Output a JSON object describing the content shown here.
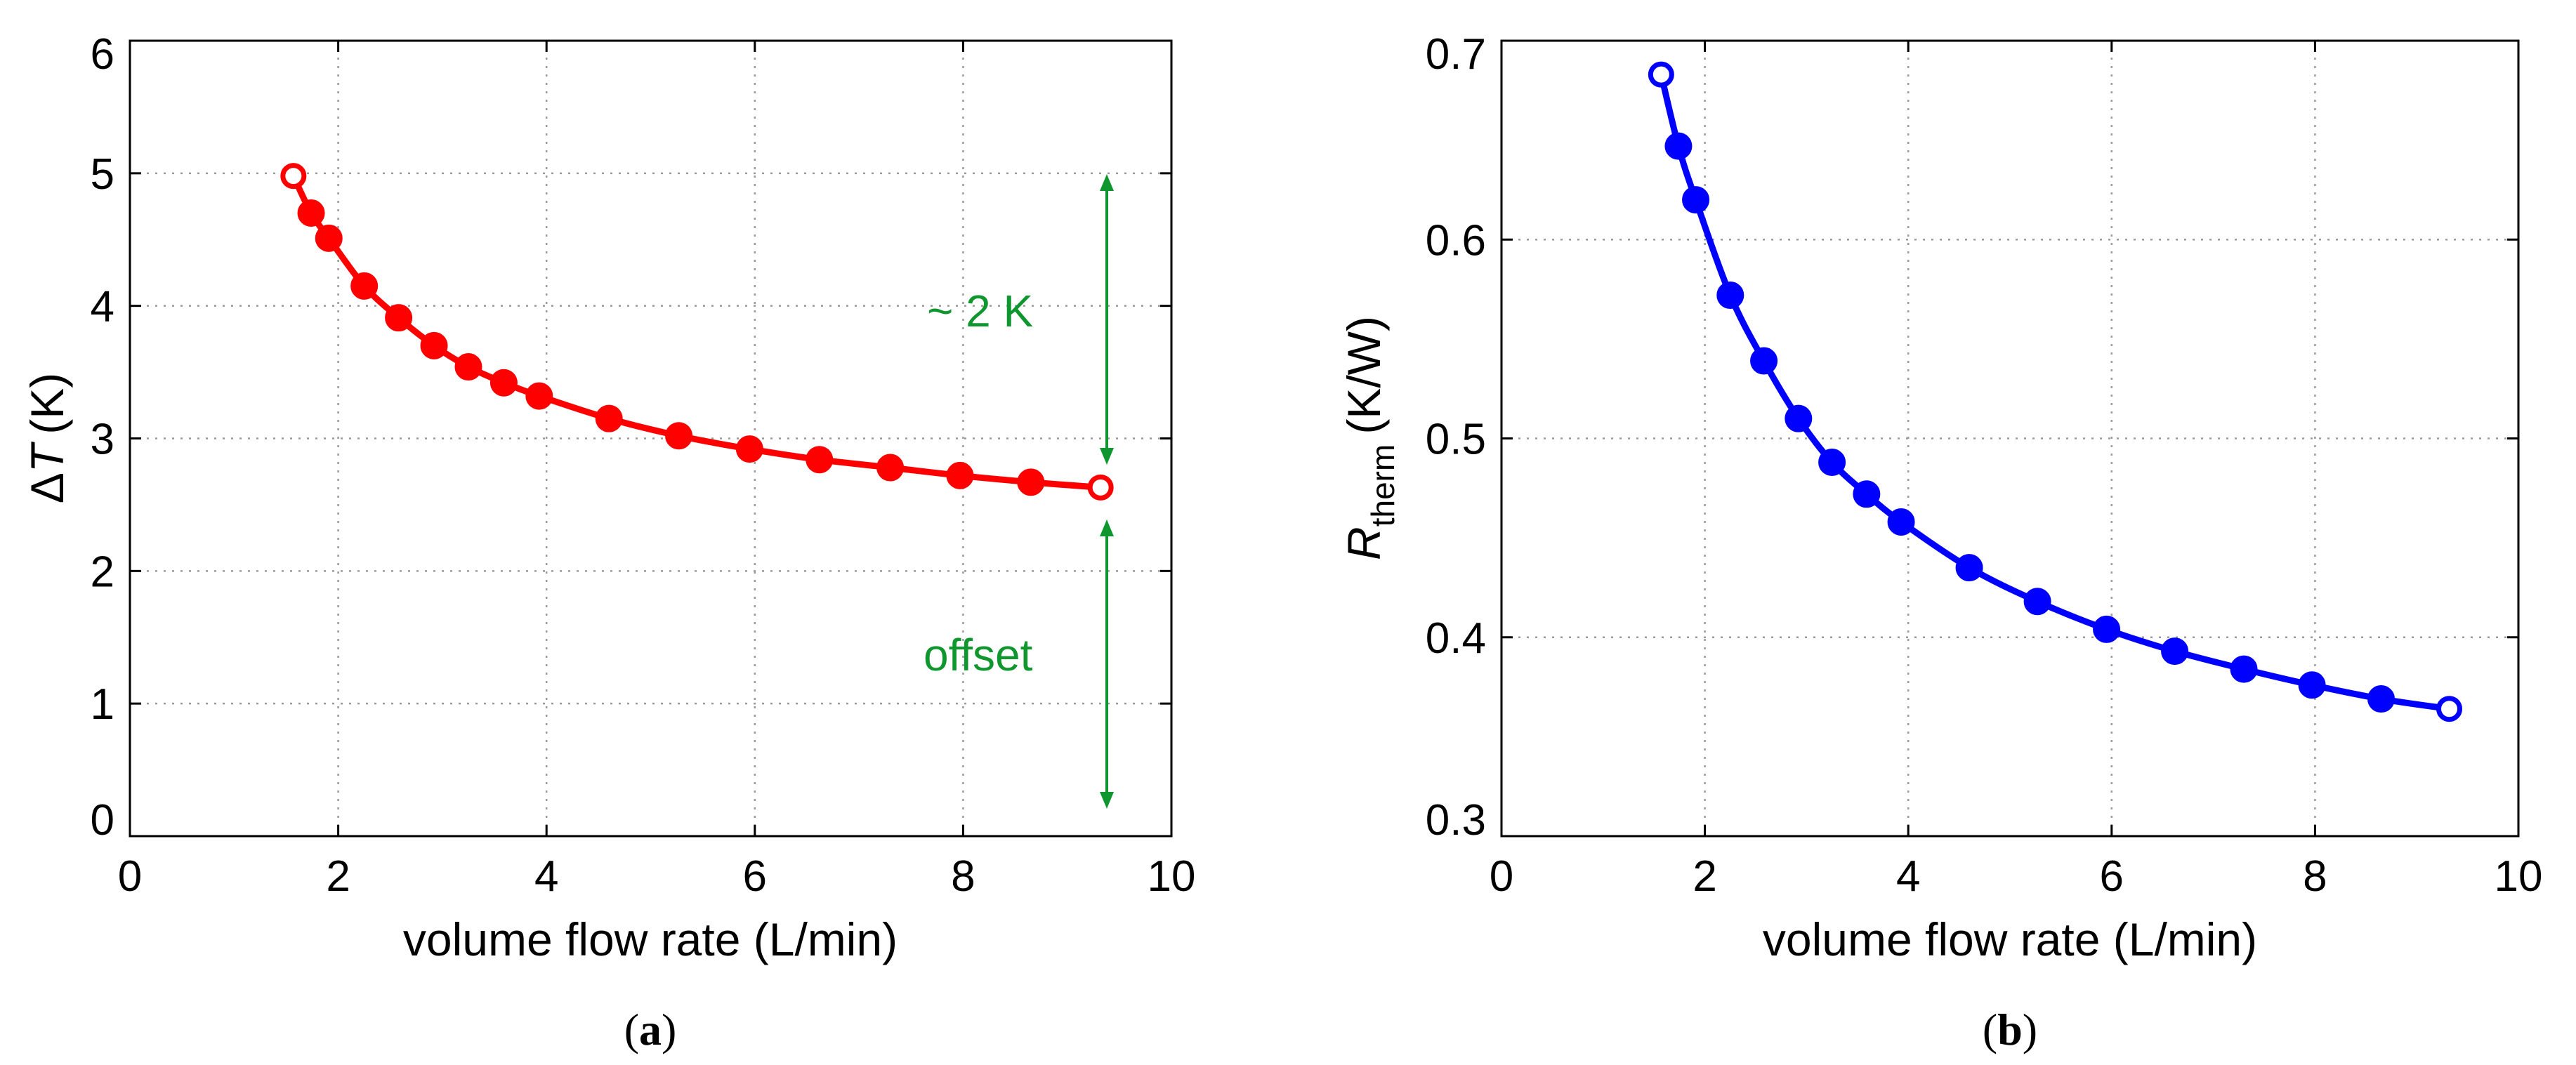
{
  "chart_data": [
    {
      "type": "line",
      "panel_label": "a",
      "caption_open": "(",
      "caption_close": ")",
      "xlabel": "volume flow rate (L/min)",
      "ylabel_symbol": "ΔT",
      "ylabel_delta": "Δ",
      "ylabel_var": "T",
      "ylabel_unit": "(K)",
      "xlim": [
        0,
        10
      ],
      "ylim": [
        0,
        6
      ],
      "xticks": [
        0,
        2,
        4,
        6,
        8,
        10
      ],
      "yticks": [
        0,
        1,
        2,
        3,
        4,
        5,
        6
      ],
      "xtick_labels": [
        "0",
        "2",
        "4",
        "6",
        "8",
        "10"
      ],
      "ytick_labels": [
        "0",
        "1",
        "2",
        "3",
        "4",
        "5",
        "6"
      ],
      "grid": true,
      "series": [
        {
          "name": "ΔT",
          "color": "#ff0000",
          "x": [
            1.57,
            1.74,
            1.91,
            2.25,
            2.58,
            2.92,
            3.25,
            3.59,
            3.93,
            4.6,
            5.27,
            5.95,
            6.62,
            7.3,
            7.97,
            8.65,
            9.32
          ],
          "y": [
            4.98,
            4.7,
            4.51,
            4.15,
            3.91,
            3.7,
            3.54,
            3.42,
            3.32,
            3.15,
            3.02,
            2.92,
            2.84,
            2.78,
            2.72,
            2.67,
            2.63
          ],
          "open_markers": [
            0,
            16
          ]
        }
      ],
      "annotations": [
        {
          "text": "~ 2 K",
          "color": "#10962e"
        },
        {
          "text": "offset",
          "color": "#10962e"
        }
      ]
    },
    {
      "type": "line",
      "panel_label": "b",
      "caption_open": "(",
      "caption_close": ")",
      "xlabel": "volume flow rate (L/min)",
      "ylabel_var": "R",
      "ylabel_sub": "therm",
      "ylabel_unit": "(K/W)",
      "xlim": [
        0,
        10
      ],
      "ylim": [
        0.3,
        0.7
      ],
      "xticks": [
        0,
        2,
        4,
        6,
        8,
        10
      ],
      "yticks": [
        0.3,
        0.4,
        0.5,
        0.6,
        0.7
      ],
      "xtick_labels": [
        "0",
        "2",
        "4",
        "6",
        "8",
        "10"
      ],
      "ytick_labels": [
        "0.3",
        "0.4",
        "0.5",
        "0.6",
        "0.7"
      ],
      "grid": true,
      "series": [
        {
          "name": "R_therm",
          "color": "#0000ff",
          "x": [
            1.57,
            1.74,
            1.91,
            2.25,
            2.58,
            2.92,
            3.25,
            3.59,
            3.93,
            4.6,
            5.27,
            5.95,
            6.62,
            7.3,
            7.97,
            8.65,
            9.32
          ],
          "y": [
            0.683,
            0.647,
            0.62,
            0.572,
            0.539,
            0.51,
            0.488,
            0.472,
            0.458,
            0.435,
            0.418,
            0.404,
            0.393,
            0.384,
            0.376,
            0.369,
            0.364
          ],
          "open_markers": [
            0,
            16
          ]
        }
      ]
    }
  ]
}
